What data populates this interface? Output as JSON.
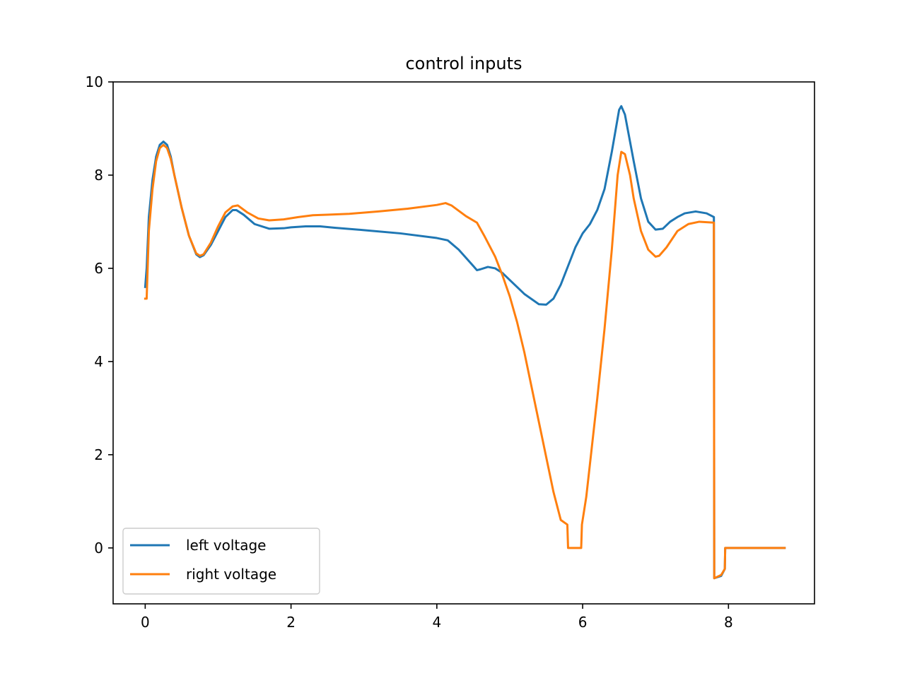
{
  "chart_data": {
    "type": "line",
    "title": "control inputs",
    "xlabel": "",
    "ylabel": "",
    "xlim": [
      -0.44,
      9.18
    ],
    "ylim": [
      -1.2,
      10.0
    ],
    "xticks": [
      0,
      2,
      4,
      6,
      8
    ],
    "yticks": [
      0,
      2,
      4,
      6,
      8,
      10
    ],
    "xtick_labels": [
      "0",
      "2",
      "4",
      "6",
      "8"
    ],
    "ytick_labels": [
      "0",
      "2",
      "4",
      "6",
      "8",
      "10"
    ],
    "grid": false,
    "legend_position": "lower-left",
    "series": [
      {
        "name": "left voltage",
        "color": "#1f77b4",
        "points": [
          [
            0.0,
            5.6
          ],
          [
            0.02,
            6.0
          ],
          [
            0.05,
            7.1
          ],
          [
            0.1,
            7.9
          ],
          [
            0.15,
            8.4
          ],
          [
            0.2,
            8.65
          ],
          [
            0.25,
            8.72
          ],
          [
            0.3,
            8.65
          ],
          [
            0.35,
            8.4
          ],
          [
            0.4,
            8.0
          ],
          [
            0.5,
            7.3
          ],
          [
            0.6,
            6.7
          ],
          [
            0.7,
            6.3
          ],
          [
            0.75,
            6.24
          ],
          [
            0.8,
            6.28
          ],
          [
            0.9,
            6.5
          ],
          [
            1.0,
            6.8
          ],
          [
            1.1,
            7.1
          ],
          [
            1.2,
            7.25
          ],
          [
            1.25,
            7.25
          ],
          [
            1.35,
            7.15
          ],
          [
            1.5,
            6.95
          ],
          [
            1.7,
            6.85
          ],
          [
            1.9,
            6.86
          ],
          [
            2.0,
            6.88
          ],
          [
            2.2,
            6.9
          ],
          [
            2.4,
            6.9
          ],
          [
            2.6,
            6.87
          ],
          [
            3.0,
            6.82
          ],
          [
            3.5,
            6.75
          ],
          [
            4.0,
            6.65
          ],
          [
            4.15,
            6.6
          ],
          [
            4.3,
            6.4
          ],
          [
            4.5,
            6.05
          ],
          [
            4.55,
            5.96
          ],
          [
            4.6,
            5.98
          ],
          [
            4.7,
            6.03
          ],
          [
            4.8,
            6.0
          ],
          [
            4.9,
            5.9
          ],
          [
            5.0,
            5.75
          ],
          [
            5.2,
            5.45
          ],
          [
            5.4,
            5.23
          ],
          [
            5.5,
            5.22
          ],
          [
            5.6,
            5.35
          ],
          [
            5.7,
            5.65
          ],
          [
            5.8,
            6.05
          ],
          [
            5.9,
            6.45
          ],
          [
            6.0,
            6.75
          ],
          [
            6.1,
            6.95
          ],
          [
            6.2,
            7.25
          ],
          [
            6.3,
            7.7
          ],
          [
            6.4,
            8.5
          ],
          [
            6.5,
            9.4
          ],
          [
            6.53,
            9.48
          ],
          [
            6.58,
            9.3
          ],
          [
            6.7,
            8.3
          ],
          [
            6.8,
            7.5
          ],
          [
            6.9,
            7.0
          ],
          [
            7.0,
            6.83
          ],
          [
            7.1,
            6.85
          ],
          [
            7.2,
            7.0
          ],
          [
            7.3,
            7.1
          ],
          [
            7.4,
            7.18
          ],
          [
            7.55,
            7.22
          ],
          [
            7.7,
            7.18
          ],
          [
            7.8,
            7.1
          ],
          [
            7.805,
            -0.65
          ],
          [
            7.9,
            -0.6
          ],
          [
            7.95,
            -0.45
          ],
          [
            7.955,
            0.0
          ],
          [
            8.77,
            0.0
          ]
        ]
      },
      {
        "name": "right voltage",
        "color": "#ff7f0e",
        "points": [
          [
            0.0,
            5.35
          ],
          [
            0.02,
            5.35
          ],
          [
            0.05,
            6.8
          ],
          [
            0.1,
            7.7
          ],
          [
            0.15,
            8.3
          ],
          [
            0.2,
            8.58
          ],
          [
            0.25,
            8.65
          ],
          [
            0.3,
            8.58
          ],
          [
            0.35,
            8.35
          ],
          [
            0.4,
            8.0
          ],
          [
            0.5,
            7.3
          ],
          [
            0.6,
            6.7
          ],
          [
            0.7,
            6.32
          ],
          [
            0.75,
            6.27
          ],
          [
            0.8,
            6.3
          ],
          [
            0.9,
            6.55
          ],
          [
            1.0,
            6.9
          ],
          [
            1.1,
            7.2
          ],
          [
            1.2,
            7.33
          ],
          [
            1.27,
            7.35
          ],
          [
            1.4,
            7.2
          ],
          [
            1.55,
            7.07
          ],
          [
            1.7,
            7.03
          ],
          [
            1.9,
            7.05
          ],
          [
            2.1,
            7.1
          ],
          [
            2.3,
            7.14
          ],
          [
            2.5,
            7.15
          ],
          [
            2.8,
            7.17
          ],
          [
            3.2,
            7.22
          ],
          [
            3.6,
            7.28
          ],
          [
            4.0,
            7.36
          ],
          [
            4.12,
            7.4
          ],
          [
            4.2,
            7.35
          ],
          [
            4.4,
            7.12
          ],
          [
            4.55,
            6.98
          ],
          [
            4.65,
            6.7
          ],
          [
            4.8,
            6.25
          ],
          [
            4.9,
            5.85
          ],
          [
            5.0,
            5.4
          ],
          [
            5.1,
            4.85
          ],
          [
            5.2,
            4.2
          ],
          [
            5.3,
            3.45
          ],
          [
            5.4,
            2.7
          ],
          [
            5.5,
            1.95
          ],
          [
            5.6,
            1.2
          ],
          [
            5.7,
            0.6
          ],
          [
            5.79,
            0.5
          ],
          [
            5.8,
            0.0
          ],
          [
            5.98,
            0.0
          ],
          [
            5.99,
            0.5
          ],
          [
            6.05,
            1.1
          ],
          [
            6.1,
            1.8
          ],
          [
            6.2,
            3.2
          ],
          [
            6.3,
            4.7
          ],
          [
            6.4,
            6.4
          ],
          [
            6.48,
            8.0
          ],
          [
            6.53,
            8.5
          ],
          [
            6.58,
            8.45
          ],
          [
            6.65,
            8.0
          ],
          [
            6.7,
            7.5
          ],
          [
            6.8,
            6.8
          ],
          [
            6.9,
            6.4
          ],
          [
            7.0,
            6.25
          ],
          [
            7.05,
            6.27
          ],
          [
            7.15,
            6.45
          ],
          [
            7.3,
            6.8
          ],
          [
            7.45,
            6.95
          ],
          [
            7.6,
            7.0
          ],
          [
            7.8,
            6.98
          ],
          [
            7.805,
            -0.65
          ],
          [
            7.9,
            -0.58
          ],
          [
            7.95,
            -0.45
          ],
          [
            7.955,
            0.0
          ],
          [
            8.77,
            0.0
          ]
        ]
      }
    ]
  }
}
